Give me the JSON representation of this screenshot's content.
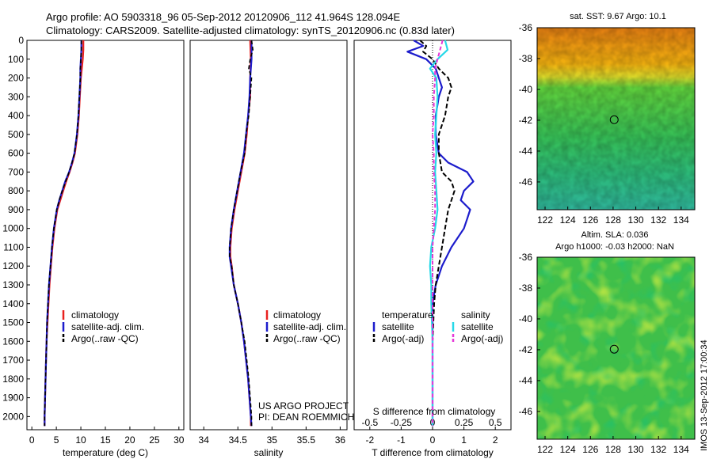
{
  "header": {
    "line1": "Argo profile: AO 5903318_96 05-Sep-2012 20120906_112 41.964S 128.094E",
    "line2": "Climatology: CARS2009. Satellite-adjusted climatology: synTS_20120906.nc (0.83d later)"
  },
  "side_stamp": "IMOS 13-Sep-2012 17:00:34",
  "colors": {
    "climatology": "#e8201e",
    "satellite": "#1c1ccc",
    "argo": "#000000",
    "sal_satellite": "#26d8e8",
    "sal_argo": "#e637d8"
  },
  "chart_data": [
    {
      "type": "line",
      "id": "temperature",
      "xlabel": "temperature (deg C)",
      "ylabel": "",
      "xlim": [
        -1,
        31
      ],
      "ylim": [
        2070,
        0
      ],
      "xticks": [
        0,
        5,
        10,
        15,
        20,
        25,
        30
      ],
      "yticks": [
        0,
        100,
        200,
        300,
        400,
        500,
        600,
        700,
        800,
        900,
        1000,
        1100,
        1200,
        1300,
        1400,
        1500,
        1600,
        1700,
        1800,
        1900,
        2000
      ],
      "legend": [
        "climatology",
        "satellite-adj. clim.",
        "Argo(..raw -QC)"
      ],
      "series": [
        {
          "name": "climatology",
          "depth": [
            0,
            50,
            100,
            150,
            200,
            300,
            400,
            500,
            600,
            650,
            700,
            750,
            800,
            850,
            900,
            1000,
            1100,
            1200,
            1300,
            1400,
            1500,
            1600,
            1700,
            1800,
            1900,
            2000,
            2050
          ],
          "values": [
            10.5,
            10.5,
            10.4,
            10.2,
            10.0,
            9.8,
            9.6,
            9.3,
            8.8,
            8.3,
            7.7,
            7.0,
            6.4,
            5.8,
            5.2,
            4.6,
            4.2,
            3.9,
            3.6,
            3.4,
            3.2,
            3.0,
            2.9,
            2.8,
            2.7,
            2.6,
            2.6
          ]
        },
        {
          "name": "satellite-adj. clim.",
          "depth": [
            0,
            50,
            100,
            150,
            200,
            300,
            400,
            500,
            600,
            650,
            700,
            750,
            800,
            850,
            900,
            1000,
            1100,
            1200,
            1300,
            1400,
            1500,
            1600,
            1700,
            1800,
            1900,
            2000,
            2050
          ],
          "values": [
            10.1,
            10.1,
            10.0,
            9.9,
            9.9,
            9.7,
            9.5,
            9.2,
            8.7,
            8.2,
            7.6,
            6.8,
            6.2,
            5.6,
            5.1,
            4.5,
            4.1,
            3.8,
            3.5,
            3.3,
            3.1,
            3.0,
            2.9,
            2.8,
            2.7,
            2.6,
            2.6
          ]
        },
        {
          "name": "Argo(..raw -QC)",
          "depth": [
            0,
            50,
            100,
            150,
            200,
            300,
            400,
            500,
            600,
            650,
            700,
            750,
            800,
            850,
            900,
            1000,
            1100,
            1200,
            1300,
            1400,
            1500,
            1600,
            1700,
            1800,
            1900,
            2000,
            2050
          ],
          "values": [
            10.1,
            10.1,
            10.0,
            9.9,
            9.9,
            9.7,
            9.5,
            9.2,
            8.7,
            8.2,
            7.6,
            6.9,
            6.2,
            5.6,
            5.1,
            4.5,
            4.1,
            3.8,
            3.5,
            3.3,
            3.1,
            3.0,
            2.9,
            2.8,
            2.7,
            2.6,
            2.6
          ]
        }
      ]
    },
    {
      "type": "line",
      "id": "salinity",
      "xlabel": "salinity",
      "xlim": [
        33.8,
        36.1
      ],
      "ylim": [
        2070,
        0
      ],
      "xticks": [
        34,
        34.5,
        35,
        35.5,
        36
      ],
      "legend": [
        "climatology",
        "satellite-adj. clim.",
        "Argo(..raw -QC)"
      ],
      "annotation": [
        "US ARGO PROJECT",
        "PI: DEAN ROEMMICH"
      ],
      "series": [
        {
          "name": "climatology",
          "depth": [
            0,
            100,
            200,
            300,
            400,
            500,
            600,
            700,
            800,
            900,
            1000,
            1100,
            1150,
            1200,
            1300,
            1400,
            1500,
            1600,
            1700,
            1800,
            1900,
            2000,
            2050
          ],
          "values": [
            34.68,
            34.69,
            34.68,
            34.68,
            34.65,
            34.63,
            34.6,
            34.55,
            34.5,
            34.45,
            34.41,
            34.39,
            34.39,
            34.41,
            34.44,
            34.5,
            34.55,
            34.59,
            34.62,
            34.65,
            34.67,
            34.69,
            34.69
          ]
        },
        {
          "name": "satellite-adj. clim.",
          "depth": [
            0,
            100,
            200,
            300,
            400,
            500,
            600,
            700,
            800,
            900,
            1000,
            1100,
            1150,
            1200,
            1300,
            1400,
            1500,
            1600,
            1700,
            1800,
            1900,
            2000,
            2050
          ],
          "values": [
            34.7,
            34.7,
            34.68,
            34.67,
            34.65,
            34.62,
            34.59,
            34.54,
            34.49,
            34.44,
            34.4,
            34.38,
            34.38,
            34.4,
            34.44,
            34.5,
            34.55,
            34.59,
            34.62,
            34.65,
            34.67,
            34.69,
            34.7
          ]
        },
        {
          "name": "Argo(..raw -QC)",
          "depth": [
            0,
            50,
            100,
            150,
            200,
            300,
            400,
            500,
            600,
            700,
            800,
            900,
            1000,
            1100,
            1150,
            1200,
            1300,
            1400,
            1500,
            1600,
            1700,
            1800,
            1900,
            2000,
            2050
          ],
          "values": [
            34.7,
            34.72,
            34.68,
            34.66,
            34.7,
            34.68,
            34.66,
            34.62,
            34.6,
            34.54,
            34.49,
            34.44,
            34.4,
            34.38,
            34.38,
            34.41,
            34.44,
            34.5,
            34.55,
            34.6,
            34.63,
            34.66,
            34.68,
            34.7,
            34.7
          ]
        }
      ]
    },
    {
      "type": "line",
      "id": "differences",
      "xlabel": "T difference from climatology",
      "xlabel2": "S difference from climatology",
      "xlim": [
        -2.5,
        2.5
      ],
      "ylim": [
        2070,
        0
      ],
      "xticks": [
        -2,
        -1,
        0,
        1,
        2
      ],
      "xticks_s": [
        "-0.5",
        "-0.25",
        "0",
        "0.25",
        "0.5"
      ],
      "legend_titles": [
        "temperature",
        "salinity"
      ],
      "legend": [
        "satellite",
        "Argo(-adj)",
        "satellite",
        "Argo(-adj)"
      ],
      "series": [
        {
          "name": "T satellite",
          "depth": [
            0,
            30,
            60,
            100,
            150,
            200,
            250,
            300,
            400,
            500,
            600,
            650,
            700,
            750,
            800,
            850,
            900,
            950,
            1000,
            1100,
            1200,
            1300,
            1400,
            1600,
            1800,
            2000,
            2050
          ],
          "values": [
            -0.6,
            -0.3,
            -0.8,
            -0.2,
            0.1,
            0.2,
            0.3,
            0.2,
            0.1,
            0.1,
            0.2,
            0.5,
            1.1,
            1.3,
            1.0,
            0.9,
            1.2,
            1.1,
            1.0,
            0.6,
            0.3,
            0.1,
            0.0,
            0.0,
            0.0,
            0.0,
            0.0
          ]
        },
        {
          "name": "T Argo(-adj)",
          "depth": [
            0,
            30,
            60,
            100,
            150,
            200,
            250,
            300,
            400,
            500,
            600,
            700,
            750,
            800,
            850,
            900,
            1000,
            1100,
            1200,
            1300,
            1400,
            1600,
            1800,
            2000,
            2050
          ],
          "values": [
            -0.4,
            -0.2,
            -0.3,
            0.0,
            0.2,
            0.5,
            0.6,
            0.5,
            0.4,
            0.2,
            0.2,
            0.3,
            0.6,
            0.7,
            0.6,
            0.5,
            0.4,
            0.3,
            0.2,
            0.1,
            0.05,
            0.0,
            0.0,
            0.0,
            0.0
          ]
        },
        {
          "name": "S satellite",
          "depth": [
            0,
            50,
            100,
            150,
            200,
            300,
            400,
            500,
            600,
            700,
            800,
            900,
            1000,
            1100,
            1200,
            1300,
            1400,
            1600,
            1800,
            2000,
            2050
          ],
          "values": [
            0.1,
            0.12,
            0.04,
            -0.02,
            0.03,
            0.04,
            0.03,
            0.02,
            0.03,
            0.02,
            0.03,
            0.04,
            0.02,
            -0.01,
            -0.02,
            -0.01,
            -0.01,
            0.0,
            0.0,
            0.0,
            0.0
          ]
        },
        {
          "name": "S Argo(-adj)",
          "depth": [
            0,
            50,
            100,
            150,
            200,
            300,
            400,
            500,
            600,
            700,
            800,
            900,
            1000,
            1100,
            1200,
            1300,
            1400,
            1600,
            1800,
            2000,
            2050
          ],
          "values": [
            0.08,
            0.06,
            0.04,
            0.02,
            0.02,
            0.01,
            0.01,
            0.0,
            0.01,
            0.01,
            0.02,
            0.02,
            0.01,
            0.0,
            0.0,
            0.0,
            0.0,
            0.0,
            0.0,
            0.0,
            0.0
          ]
        }
      ]
    },
    {
      "type": "heatmap",
      "id": "sst_map",
      "title": "sat. SST: 9.67  Argo: 10.1",
      "xlim": [
        121.3,
        135.2
      ],
      "ylim": [
        -47.8,
        -36
      ],
      "xticks": [
        122,
        124,
        126,
        128,
        130,
        132,
        134
      ],
      "yticks": [
        -36,
        -38,
        -40,
        -42,
        -44,
        -46
      ],
      "marker": {
        "lon": 128.094,
        "lat": -41.964
      }
    },
    {
      "type": "heatmap",
      "id": "sla_map",
      "title_lines": [
        "Altim. SLA: 0.036",
        "Argo h1000: -0.03  h2000: NaN"
      ],
      "xlim": [
        121.3,
        135.2
      ],
      "ylim": [
        -47.8,
        -36
      ],
      "xticks": [
        122,
        124,
        126,
        128,
        130,
        132,
        134
      ],
      "yticks": [
        -36,
        -38,
        -40,
        -42,
        -44,
        -46
      ],
      "marker": {
        "lon": 128.094,
        "lat": -41.964
      }
    }
  ]
}
